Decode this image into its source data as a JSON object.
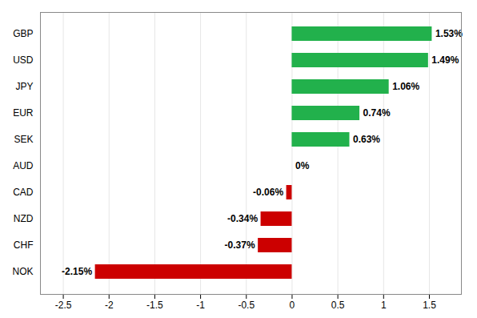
{
  "chart_data": {
    "type": "bar",
    "orientation": "horizontal",
    "categories": [
      "NOK",
      "CHF",
      "NZD",
      "CAD",
      "AUD",
      "SEK",
      "EUR",
      "JPY",
      "USD",
      "GBP"
    ],
    "values": [
      -2.15,
      -0.37,
      -0.34,
      -0.06,
      0.0,
      0.63,
      0.74,
      1.06,
      1.49,
      1.53
    ],
    "value_labels": [
      "-2.15%",
      "-0.37%",
      "-0.34%",
      "-0.06%",
      "0%",
      "0.63%",
      "0.74%",
      "1.06%",
      "1.49%",
      "1.53%"
    ],
    "colors": [
      "#cc0000",
      "#cc0000",
      "#cc0000",
      "#cc0000",
      "#ffffff",
      "#22b14c",
      "#22b14c",
      "#22b14c",
      "#22b14c",
      "#22b14c"
    ],
    "data_labels": true,
    "xlim": [
      -2.75,
      1.85
    ],
    "xticks": [
      -2.5,
      -2,
      -1.5,
      -1,
      -0.5,
      0,
      0.5,
      1,
      1.5
    ],
    "grid": true
  }
}
